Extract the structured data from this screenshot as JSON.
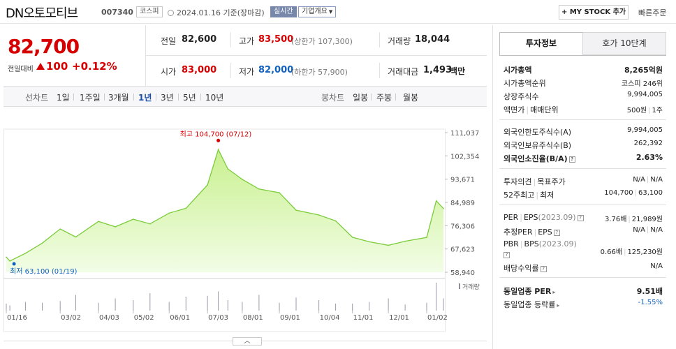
{
  "header": {
    "name": "DN오토모티브",
    "code": "007340",
    "market": "코스피",
    "datetime": "2024.01.16 기준(장마감)",
    "realtime": "실시간",
    "company_info": "기업개요",
    "mystock": "+ MY STOCK 추가",
    "quick_order": "빠른주문"
  },
  "price": {
    "current": "82,700",
    "change_label": "전일대비",
    "change": "100",
    "change_pct": "+0.12%"
  },
  "quote": {
    "prev_label": "전일",
    "prev": "82,600",
    "high_label": "고가",
    "high": "83,500",
    "upper_limit": "(상한가 107,300)",
    "volume_label": "거래량",
    "volume": "18,044",
    "open_label": "시가",
    "open": "83,000",
    "low_label": "저가",
    "low": "82,000",
    "lower_limit": "(하한가 57,900)",
    "amount_label": "거래대금",
    "amount": "1,493",
    "amount_unit": "백만"
  },
  "periods": {
    "line_label": "선차트",
    "items": [
      "1일",
      "1주일",
      "3개월",
      "1년",
      "3년",
      "5년",
      "10년"
    ],
    "active": "1년",
    "candle_label": "봉차트",
    "candle_items": [
      "일봉",
      "주봉",
      "월봉"
    ]
  },
  "chart_data": {
    "type": "area",
    "yticks": [
      "111,037",
      "102,354",
      "93,671",
      "84,989",
      "76,306",
      "67,623",
      "58,940"
    ],
    "ylim": [
      58940,
      111037
    ],
    "xticks": [
      "01/16",
      "03/02",
      "04/03",
      "05/02",
      "06/01",
      "07/03",
      "08/01",
      "09/01",
      "10/04",
      "11/01",
      "12/01",
      "01/02"
    ],
    "high_label": "최고 104,700 (07/12)",
    "low_label": "최저 63,100 (01/19)",
    "volume_label": "거래량",
    "x": [
      "01/16",
      "01/19",
      "02/01",
      "02/15",
      "03/02",
      "03/15",
      "04/03",
      "04/17",
      "05/02",
      "05/16",
      "06/01",
      "06/15",
      "07/03",
      "07/12",
      "07/20",
      "08/01",
      "08/15",
      "09/01",
      "09/15",
      "10/04",
      "10/18",
      "11/01",
      "11/15",
      "12/01",
      "12/15",
      "01/02",
      "01/10",
      "01/16"
    ],
    "prices": [
      64600,
      63100,
      66000,
      69800,
      75100,
      72100,
      77900,
      75900,
      78700,
      77000,
      81000,
      82800,
      91500,
      104700,
      97500,
      93600,
      90000,
      88600,
      82100,
      80300,
      78100,
      72000,
      70300,
      69000,
      70500,
      71900,
      85600,
      82700
    ],
    "volumes": [
      8,
      6,
      10,
      9,
      11,
      18,
      9,
      14,
      12,
      20,
      10,
      16,
      17,
      22,
      12,
      10,
      18,
      9,
      15,
      12,
      8,
      8,
      10,
      14,
      7,
      9,
      32,
      14
    ]
  },
  "side": {
    "tab1": "투자정보",
    "tab2": "호가 10단계",
    "market_cap_label": "시가총액",
    "market_cap": "8,265억원",
    "rank_label": "시가총액순위",
    "rank": "코스피 246위",
    "shares_label": "상장주식수",
    "shares": "9,994,005",
    "par_label": "액면가",
    "unit_label": "매매단위",
    "par": "500원",
    "unit": "1주",
    "foreign_limit_label": "외국인한도주식수(A)",
    "foreign_limit": "9,994,005",
    "foreign_hold_label": "외국인보유주식수(B)",
    "foreign_hold": "262,392",
    "foreign_ratio_label": "외국인소진율(B/A)",
    "foreign_ratio": "2.63%",
    "opinion_label": "투자의견",
    "target_label": "목표주가",
    "opinion": "N/A",
    "target": "N/A",
    "w52_label": "52주최고",
    "w52_low_label": "최저",
    "w52_high": "104,700",
    "w52_low": "63,100",
    "per_label": "PER",
    "eps_label": "EPS",
    "eps_period": "(2023.09)",
    "per": "3.76배",
    "eps": "21,989원",
    "est_per_label": "추정PER",
    "est_eps_label": "EPS",
    "est_per": "N/A",
    "est_eps": "N/A",
    "pbr_label": "PBR",
    "bps_label": "BPS",
    "bps_period": "(2023.09)",
    "pbr": "0.66배",
    "bps": "125,230원",
    "div_label": "배당수익률",
    "div": "N/A",
    "ind_per_label": "동일업종 PER",
    "ind_per": "9.51배",
    "ind_rate_label": "동일업종 등락률",
    "ind_rate": "-1.55%"
  },
  "colors": {
    "up": "#d60000",
    "down": "#1060c0",
    "line": "#7ccc3c",
    "fill_top": "#c9f08f",
    "fill_bottom": "#f2fde6"
  }
}
